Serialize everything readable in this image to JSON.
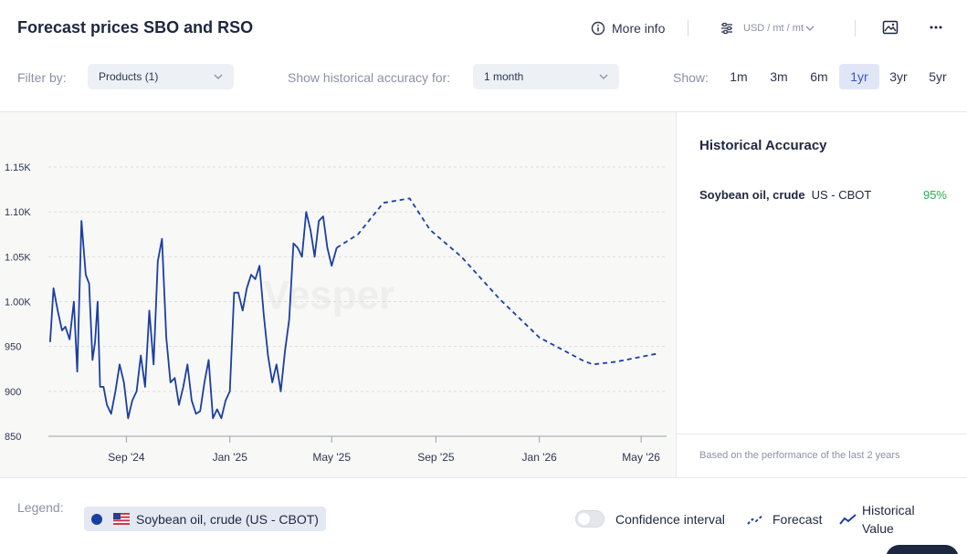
{
  "header": {
    "title": "Forecast prices SBO and RSO",
    "more_info": "More info",
    "unit": "USD / mt / mt"
  },
  "filters": {
    "filter_by_label": "Filter by:",
    "products_value": "Products (1)",
    "accuracy_label": "Show historical accuracy for:",
    "accuracy_value": "1 month",
    "show_label": "Show:",
    "ranges": [
      "1m",
      "3m",
      "6m",
      "1yr",
      "3yr",
      "5yr"
    ],
    "active_range": "1yr"
  },
  "side": {
    "title": "Historical Accuracy",
    "commodity": "Soybean oil, crude",
    "market": "US - CBOT",
    "accuracy": "95%",
    "footnote": "Based on the performance of the last 2 years"
  },
  "legend": {
    "label": "Legend:",
    "series_chip": "Soybean oil, crude (US - CBOT)",
    "confidence": "Confidence interval",
    "forecast": "Forecast",
    "historical_1": "Historical",
    "historical_2": "Value"
  },
  "colors": {
    "series": "#1a3fa3",
    "accent": "#3a55c9",
    "positive": "#23b14d"
  },
  "chart_data": {
    "type": "line",
    "watermark": "Vesper",
    "ylim": [
      850,
      1150
    ],
    "yticks": [
      850,
      900,
      950,
      1000,
      1050,
      1100,
      1150
    ],
    "ytick_labels": [
      "850",
      "900",
      "950",
      "1.00K",
      "1.05K",
      "1.10K",
      "1.15K"
    ],
    "xlim": [
      "2024-06-01",
      "2026-05-31"
    ],
    "xticks": [
      {
        "date": "2024-09-01",
        "label": "Sep '24"
      },
      {
        "date": "2025-01-01",
        "label": "Jan '25"
      },
      {
        "date": "2025-05-01",
        "label": "May '25"
      },
      {
        "date": "2025-09-01",
        "label": "Sep '25"
      },
      {
        "date": "2026-01-01",
        "label": "Jan '26"
      },
      {
        "date": "2026-05-01",
        "label": "May '26"
      }
    ],
    "series": [
      {
        "name": "Soybean oil, crude (US - CBOT)",
        "style": "solid",
        "x": [
          "2024-06-03",
          "2024-06-07",
          "2024-06-12",
          "2024-06-17",
          "2024-06-21",
          "2024-06-26",
          "2024-07-01",
          "2024-07-05",
          "2024-07-10",
          "2024-07-15",
          "2024-07-19",
          "2024-07-23",
          "2024-07-26",
          "2024-07-29",
          "2024-08-01",
          "2024-08-05",
          "2024-08-09",
          "2024-08-14",
          "2024-08-19",
          "2024-08-24",
          "2024-08-29",
          "2024-09-03",
          "2024-09-08",
          "2024-09-13",
          "2024-09-18",
          "2024-09-23",
          "2024-09-28",
          "2024-10-03",
          "2024-10-08",
          "2024-10-13",
          "2024-10-18",
          "2024-10-23",
          "2024-10-28",
          "2024-11-02",
          "2024-11-07",
          "2024-11-12",
          "2024-11-17",
          "2024-11-22",
          "2024-11-27",
          "2024-12-02",
          "2024-12-07",
          "2024-12-12",
          "2024-12-17",
          "2024-12-22",
          "2024-12-27",
          "2025-01-01",
          "2025-01-06",
          "2025-01-11",
          "2025-01-16",
          "2025-01-21",
          "2025-01-26",
          "2025-01-31",
          "2025-02-05",
          "2025-02-10",
          "2025-02-15",
          "2025-02-20",
          "2025-02-25",
          "2025-03-02",
          "2025-03-07",
          "2025-03-12",
          "2025-03-17",
          "2025-03-22",
          "2025-03-27",
          "2025-04-01",
          "2025-04-06",
          "2025-04-11",
          "2025-04-16",
          "2025-04-21",
          "2025-04-26",
          "2025-05-01",
          "2025-05-04",
          "2025-05-07"
        ],
        "y": [
          955,
          1015,
          990,
          968,
          972,
          958,
          1000,
          922,
          1090,
          1030,
          1020,
          935,
          955,
          1000,
          905,
          905,
          885,
          875,
          900,
          930,
          910,
          870,
          890,
          900,
          940,
          905,
          990,
          930,
          1045,
          1070,
          960,
          910,
          915,
          885,
          905,
          930,
          890,
          875,
          878,
          910,
          935,
          870,
          880,
          870,
          890,
          900,
          1010,
          1010,
          990,
          1015,
          1030,
          1025,
          1040,
          985,
          940,
          910,
          930,
          900,
          945,
          980,
          1065,
          1060,
          1050,
          1100,
          1080,
          1050,
          1090,
          1095,
          1060,
          1040,
          1050,
          1060
        ]
      },
      {
        "name": "Forecast",
        "style": "dashed",
        "x": [
          "2025-05-07",
          "2025-06-01",
          "2025-07-01",
          "2025-08-01",
          "2025-08-25",
          "2025-10-01",
          "2025-11-15",
          "2026-01-01",
          "2026-02-20",
          "2026-03-05",
          "2026-04-01",
          "2026-05-20"
        ],
        "y": [
          1060,
          1075,
          1110,
          1115,
          1080,
          1050,
          1003,
          960,
          935,
          930,
          933,
          942
        ]
      }
    ]
  }
}
